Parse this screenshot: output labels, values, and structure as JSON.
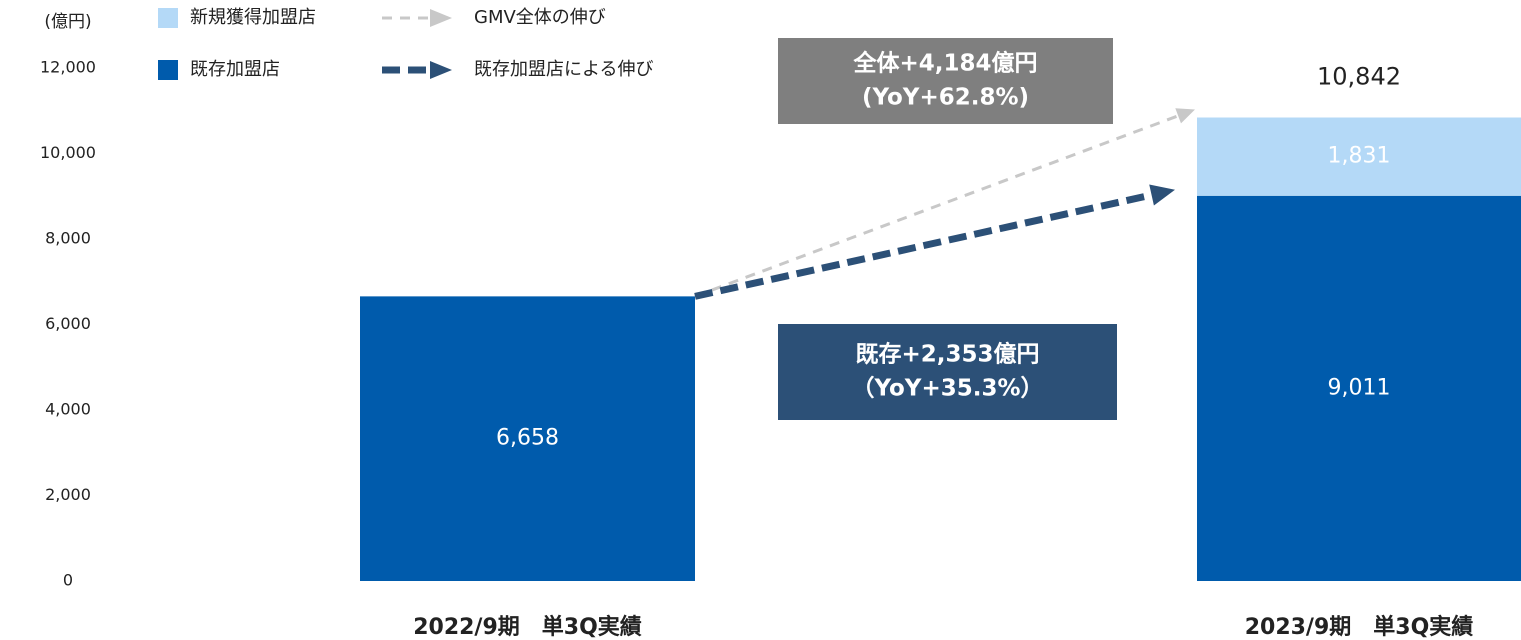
{
  "chart_data": {
    "type": "stacked_bar",
    "y_label": "(億円)",
    "categories": [
      "2022/9期　単3Q実績",
      "2023/9期　単3Q実績"
    ],
    "series": [
      {
        "name": "既存加盟店",
        "color": "#005bac",
        "values": [
          6658,
          9011
        ],
        "value_labels": [
          "6,658",
          "9,011"
        ],
        "label_color": "#ffffff"
      },
      {
        "name": "新規獲得加盟店",
        "color": "#b4d9f7",
        "values": [
          null,
          1831
        ],
        "value_labels": [
          null,
          "1,831"
        ],
        "label_color": "#ffffff"
      }
    ],
    "totals": [
      null,
      10842
    ],
    "total_labels": [
      null,
      "10,842"
    ],
    "arrow_legend": [
      "GMV全体の伸び",
      "既存加盟店による伸び"
    ],
    "annotations": [
      {
        "lines": [
          "全体+4,184億円",
          "(YoY+62.8%)"
        ],
        "color": "#7f7f7f"
      },
      {
        "lines": [
          "既存+2,353億円",
          "（YoY+35.3%）"
        ],
        "color": "#2c5077"
      }
    ],
    "ylim": [
      0,
      12000
    ],
    "yticks": [
      0,
      {
        "value": 2000,
        "label": "2,000"
      },
      {
        "value": 4000,
        "label": "4,000"
      },
      {
        "value": 6000,
        "label": "6,000"
      },
      {
        "value": 8000,
        "label": "8,000"
      },
      {
        "value": 10000,
        "label": "10,000"
      },
      {
        "value": 12000,
        "label": "12,000"
      }
    ],
    "grid": false
  }
}
